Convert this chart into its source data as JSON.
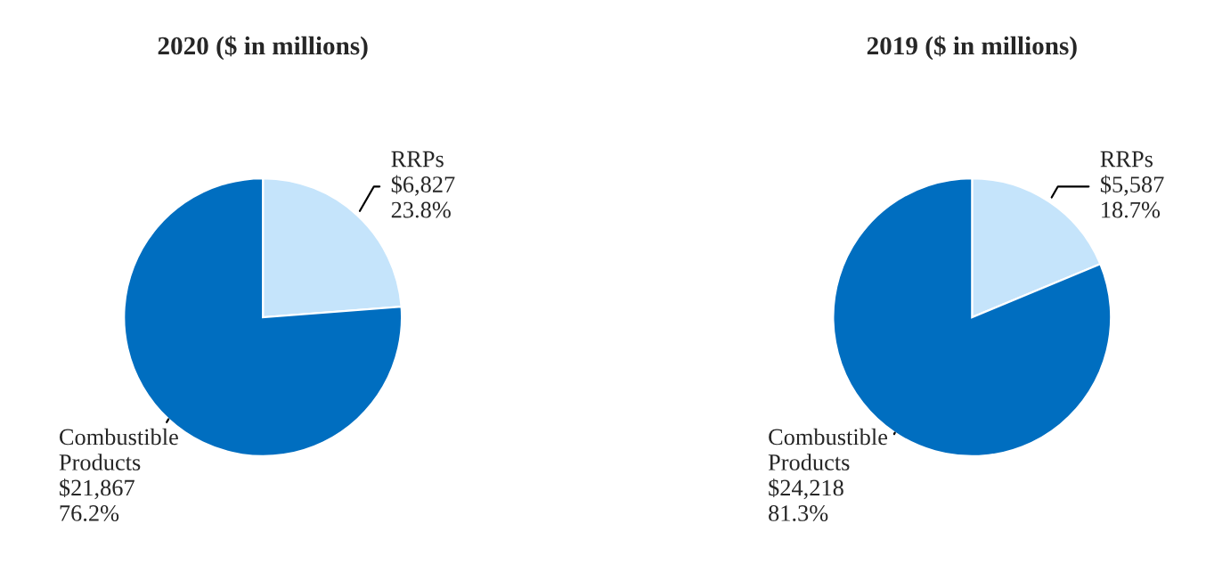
{
  "chart_data": [
    {
      "type": "pie",
      "title": "2020 ($ in millions)",
      "categories": [
        "RRPs",
        "Combustible Products"
      ],
      "values": [
        6827,
        21867
      ],
      "value_labels": [
        "$6,827\n23.8%",
        "$21,867\n76.2%"
      ],
      "colors": [
        "#c5e4fb",
        "#006ec0"
      ]
    },
    {
      "type": "pie",
      "title": "2019 ($ in millions)",
      "categories": [
        "RRPs",
        "Combustible Products"
      ],
      "values": [
        5587,
        24218
      ],
      "value_labels": [
        "$5,587\n18.7%",
        "$24,218\n81.3%"
      ],
      "colors": [
        "#c5e4fb",
        "#006ec0"
      ]
    }
  ]
}
